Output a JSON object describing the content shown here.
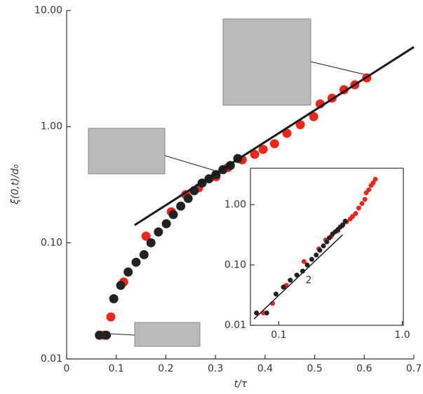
{
  "chart_data": [
    {
      "type": "scatter",
      "xlabel": "t/τ",
      "ylabel": "ξ(0,t)/d₀",
      "xlim": [
        0,
        0.7
      ],
      "ylim": [
        0.01,
        10
      ],
      "ylog": true,
      "xticks": [
        0,
        0.1,
        0.2,
        0.3,
        0.4,
        0.5,
        0.6,
        0.7
      ],
      "yticks": [
        0.01,
        {
          "value": 0.1,
          "label": "0.10"
        },
        {
          "value": 1,
          "label": "1.00"
        },
        {
          "value": 10,
          "label": "10.00"
        }
      ],
      "series": [
        {
          "color": "#e8281e",
          "x": [
            0.075,
            0.089,
            0.115,
            0.16,
            0.211,
            0.24,
            0.266,
            0.301,
            0.325,
            0.354,
            0.379,
            0.396,
            0.419,
            0.444,
            0.471,
            0.498,
            0.511,
            0.535,
            0.559,
            0.581,
            0.605
          ],
          "values": [
            0.016,
            0.023,
            0.046,
            0.114,
            0.185,
            0.26,
            0.297,
            0.37,
            0.444,
            0.518,
            0.578,
            0.637,
            0.713,
            0.877,
            1.04,
            1.22,
            1.57,
            1.76,
            2.08,
            2.29,
            2.63
          ]
        },
        {
          "color": "#222222",
          "x": [
            0.066,
            0.08,
            0.095,
            0.109,
            0.124,
            0.14,
            0.156,
            0.17,
            0.185,
            0.201,
            0.215,
            0.23,
            0.245,
            0.257,
            0.273,
            0.287,
            0.301,
            0.315,
            0.33,
            0.345
          ],
          "values": [
            0.016,
            0.016,
            0.033,
            0.043,
            0.056,
            0.068,
            0.079,
            0.1,
            0.124,
            0.146,
            0.175,
            0.207,
            0.241,
            0.281,
            0.327,
            0.356,
            0.387,
            0.426,
            0.463,
            0.532
          ]
        },
        {
          "color": "#1a1a1a",
          "style": "line",
          "x": [
            0.137,
            0.7
          ],
          "values": [
            0.142,
            4.85
          ]
        }
      ]
    },
    {
      "type": "scatter",
      "annotation": "2",
      "xlim": [
        0.059,
        1.02
      ],
      "ylim": [
        0.01,
        4
      ],
      "xlog": true,
      "ylog": true,
      "xticks": [
        0.1,
        {
          "value": 1,
          "label": "1.0"
        }
      ],
      "yticks": [
        0.01,
        {
          "value": 0.1,
          "label": "0.10"
        },
        {
          "value": 1,
          "label": "1.00"
        }
      ],
      "series": [
        {
          "color": "#e8281e",
          "x": [
            0.075,
            0.089,
            0.115,
            0.16,
            0.211,
            0.24,
            0.266,
            0.301,
            0.325,
            0.354,
            0.379,
            0.396,
            0.419,
            0.444,
            0.471,
            0.498,
            0.511,
            0.535,
            0.559,
            0.581,
            0.605
          ],
          "values": [
            0.016,
            0.023,
            0.046,
            0.114,
            0.185,
            0.26,
            0.297,
            0.37,
            0.444,
            0.518,
            0.578,
            0.637,
            0.713,
            0.877,
            1.04,
            1.22,
            1.57,
            1.76,
            2.08,
            2.29,
            2.63
          ]
        },
        {
          "color": "#222222",
          "x": [
            0.066,
            0.08,
            0.095,
            0.109,
            0.124,
            0.14,
            0.156,
            0.17,
            0.185,
            0.201,
            0.215,
            0.23,
            0.245,
            0.257,
            0.273,
            0.287,
            0.301,
            0.315,
            0.33,
            0.345
          ],
          "values": [
            0.016,
            0.016,
            0.033,
            0.043,
            0.056,
            0.068,
            0.079,
            0.1,
            0.124,
            0.146,
            0.175,
            0.207,
            0.241,
            0.281,
            0.327,
            0.356,
            0.387,
            0.426,
            0.463,
            0.532
          ]
        },
        {
          "color": "#1a1a1a",
          "style": "line",
          "x": [
            0.063,
            0.329
          ],
          "values": [
            0.0127,
            0.316
          ]
        }
      ]
    }
  ]
}
